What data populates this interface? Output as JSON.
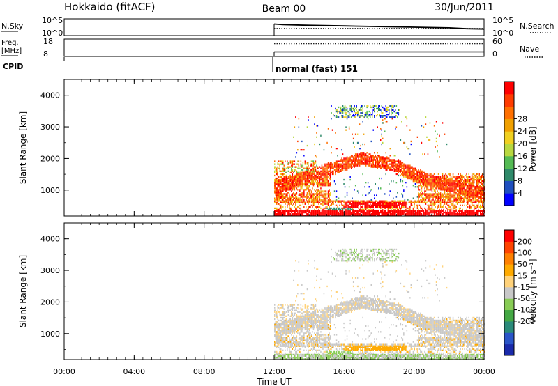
{
  "header": {
    "title_left": "Hokkaido (fitACF)",
    "title_center": "Beam 00",
    "title_right": "30/Jun/2011"
  },
  "colors": {
    "power": [
      "#0000ff",
      "#1f4fbf",
      "#2f8a6a",
      "#55bb55",
      "#b8d840",
      "#f0d020",
      "#f0a000",
      "#ff7000",
      "#ff3c00",
      "#ff0000"
    ],
    "velocity": [
      "#ff0000",
      "#ff4400",
      "#ff8000",
      "#ffaa00",
      "#ffd27a",
      "#c8c8c8",
      "#88cc55",
      "#44a844",
      "#2a8a7a",
      "#2a55c8",
      "#1a2aaa"
    ]
  },
  "chart_data": [
    {
      "type": "line",
      "panel": "nsky-nsearch",
      "left_label": "N.Sky",
      "right_label": "N.Search",
      "left_ticks": [
        "10^5",
        "10^0"
      ],
      "right_ticks": [
        "10^5",
        "10^0"
      ],
      "x_start_hour": 12,
      "series": [
        {
          "name": "N.Sky",
          "style": "solid",
          "x": [
            12,
            12.5,
            14,
            16,
            18,
            20,
            22,
            23,
            24
          ],
          "y": [
            0.25,
            0.3,
            0.35,
            0.4,
            0.45,
            0.5,
            0.55,
            0.62,
            0.65
          ]
        },
        {
          "name": "N.Search",
          "style": "dotted",
          "x": [
            12,
            24
          ],
          "y": [
            0.6,
            0.6
          ]
        }
      ]
    },
    {
      "type": "line",
      "panel": "freq-nave",
      "left_label": "Freq.",
      "left_unit": "[MHz]",
      "right_label": "Nave",
      "left_ticks": [
        "18",
        "8"
      ],
      "right_ticks": [
        "60",
        "0"
      ],
      "cpid_label": "CPID",
      "cpid_text": "normal (fast) 151",
      "x_start_hour": 12,
      "series": [
        {
          "name": "Freq.",
          "style": "solid",
          "x": [
            12,
            24
          ],
          "y": [
            10.6,
            10.6
          ]
        },
        {
          "name": "Nave",
          "style": "dotted",
          "x": [
            12,
            24
          ],
          "y": [
            44,
            44
          ]
        }
      ]
    },
    {
      "type": "heatmap",
      "panel": "power",
      "ylabel": "Slant Range [km]",
      "yticks": [
        "1000",
        "2000",
        "3000",
        "4000"
      ],
      "ylim": [
        180,
        4500
      ],
      "xlim": [
        0,
        24
      ],
      "colorbar_label": "Power [dB]",
      "colorbar_ticks": [
        "4",
        "8",
        "12",
        "16",
        "20",
        "24",
        "28"
      ]
    },
    {
      "type": "heatmap",
      "panel": "velocity",
      "ylabel": "Slant Range [km]",
      "yticks": [
        "1000",
        "2000",
        "3000",
        "4000"
      ],
      "ylim": [
        180,
        4500
      ],
      "xlim": [
        0,
        24
      ],
      "colorbar_label": "Velocity [m s⁻¹]",
      "colorbar_ticks": [
        "200",
        "100",
        "50",
        "15",
        "-15",
        "-50",
        "-100",
        "-200"
      ],
      "xlabel": "Time UT",
      "xticks": [
        "00:00",
        "04:00",
        "08:00",
        "12:00",
        "16:00",
        "20:00",
        "00:00"
      ]
    }
  ]
}
